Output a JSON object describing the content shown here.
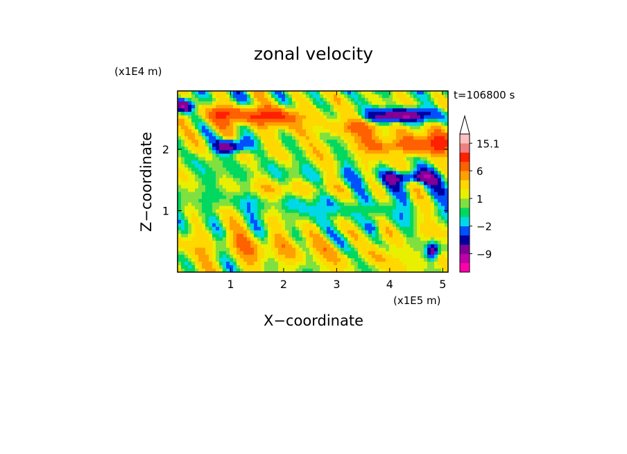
{
  "chart_data": {
    "type": "heatmap",
    "title": "zonal velocity",
    "xlabel": "X−coordinate",
    "ylabel": "Z−coordinate",
    "x_unit": "(x1E5 m)",
    "y_unit": "(x1E4 m)",
    "time_label": "t=106800 s",
    "xlim": [
      0,
      5.1
    ],
    "ylim": [
      0,
      2.95
    ],
    "x_ticks": [
      {
        "value": 1,
        "label": "1"
      },
      {
        "value": 2,
        "label": "2"
      },
      {
        "value": 3,
        "label": "3"
      },
      {
        "value": 4,
        "label": "4"
      },
      {
        "value": 5,
        "label": "5"
      }
    ],
    "y_ticks": [
      {
        "value": 1,
        "label": "1"
      },
      {
        "value": 2,
        "label": "2"
      }
    ],
    "colorbar": {
      "levels": [
        -15,
        -12,
        -9,
        -6,
        -4,
        -2,
        -1,
        0,
        1,
        2,
        4,
        6,
        9,
        12,
        15.1
      ],
      "colors": [
        "#ff00aa",
        "#c000a8",
        "#800098",
        "#0000a0",
        "#0050ff",
        "#00d8e8",
        "#00d860",
        "#80e040",
        "#e8f000",
        "#ffd800",
        "#ffa000",
        "#ff6000",
        "#ff2000",
        "#f08080",
        "#ffc0c0"
      ],
      "tick_labels": [
        {
          "value": 15.1,
          "label": "15.1"
        },
        {
          "value": 6,
          "label": "6"
        },
        {
          "value": 1,
          "label": "1"
        },
        {
          "value": -2,
          "label": "−2"
        },
        {
          "value": -9,
          "label": "−9"
        }
      ],
      "extend": "max"
    },
    "features": [
      {
        "x": 1.65,
        "z": 2.55,
        "value": 8,
        "sx": 0.75,
        "sz": 0.14
      },
      {
        "x": 0.9,
        "z": 2.6,
        "value": 5,
        "sx": 0.3,
        "sz": 0.13
      },
      {
        "x": 4.25,
        "z": 2.55,
        "value": -11,
        "sx": 0.6,
        "sz": 0.12
      },
      {
        "x": 0.12,
        "z": 2.7,
        "value": -10,
        "sx": 0.18,
        "sz": 0.1
      },
      {
        "x": 1.0,
        "z": 2.05,
        "value": -11,
        "sx": 0.3,
        "sz": 0.12
      },
      {
        "x": 4.4,
        "z": 1.55,
        "value": -8,
        "sx": 0.45,
        "sz": 0.1
      },
      {
        "x": 4.2,
        "z": 2.05,
        "value": 6,
        "sx": 0.8,
        "sz": 0.14
      },
      {
        "x": 4.9,
        "z": 2.1,
        "value": 6,
        "sx": 0.3,
        "sz": 0.2
      },
      {
        "x": 3.5,
        "z": 2.35,
        "value": 4,
        "sx": 0.5,
        "sz": 0.12
      },
      {
        "x": 2.0,
        "z": 1.35,
        "value": 3,
        "sx": 1.2,
        "sz": 0.15
      },
      {
        "x": 1.7,
        "z": 0.45,
        "value": 2,
        "sx": 0.9,
        "sz": 0.25
      },
      {
        "x": 2.7,
        "z": 0.9,
        "value": -1,
        "sx": 0.9,
        "sz": 0.35
      },
      {
        "x": 3.7,
        "z": 0.75,
        "value": -3,
        "sx": 0.15,
        "sz": 0.12
      },
      {
        "x": 4.8,
        "z": 0.35,
        "value": -9,
        "sx": 0.12,
        "sz": 0.15
      }
    ]
  }
}
